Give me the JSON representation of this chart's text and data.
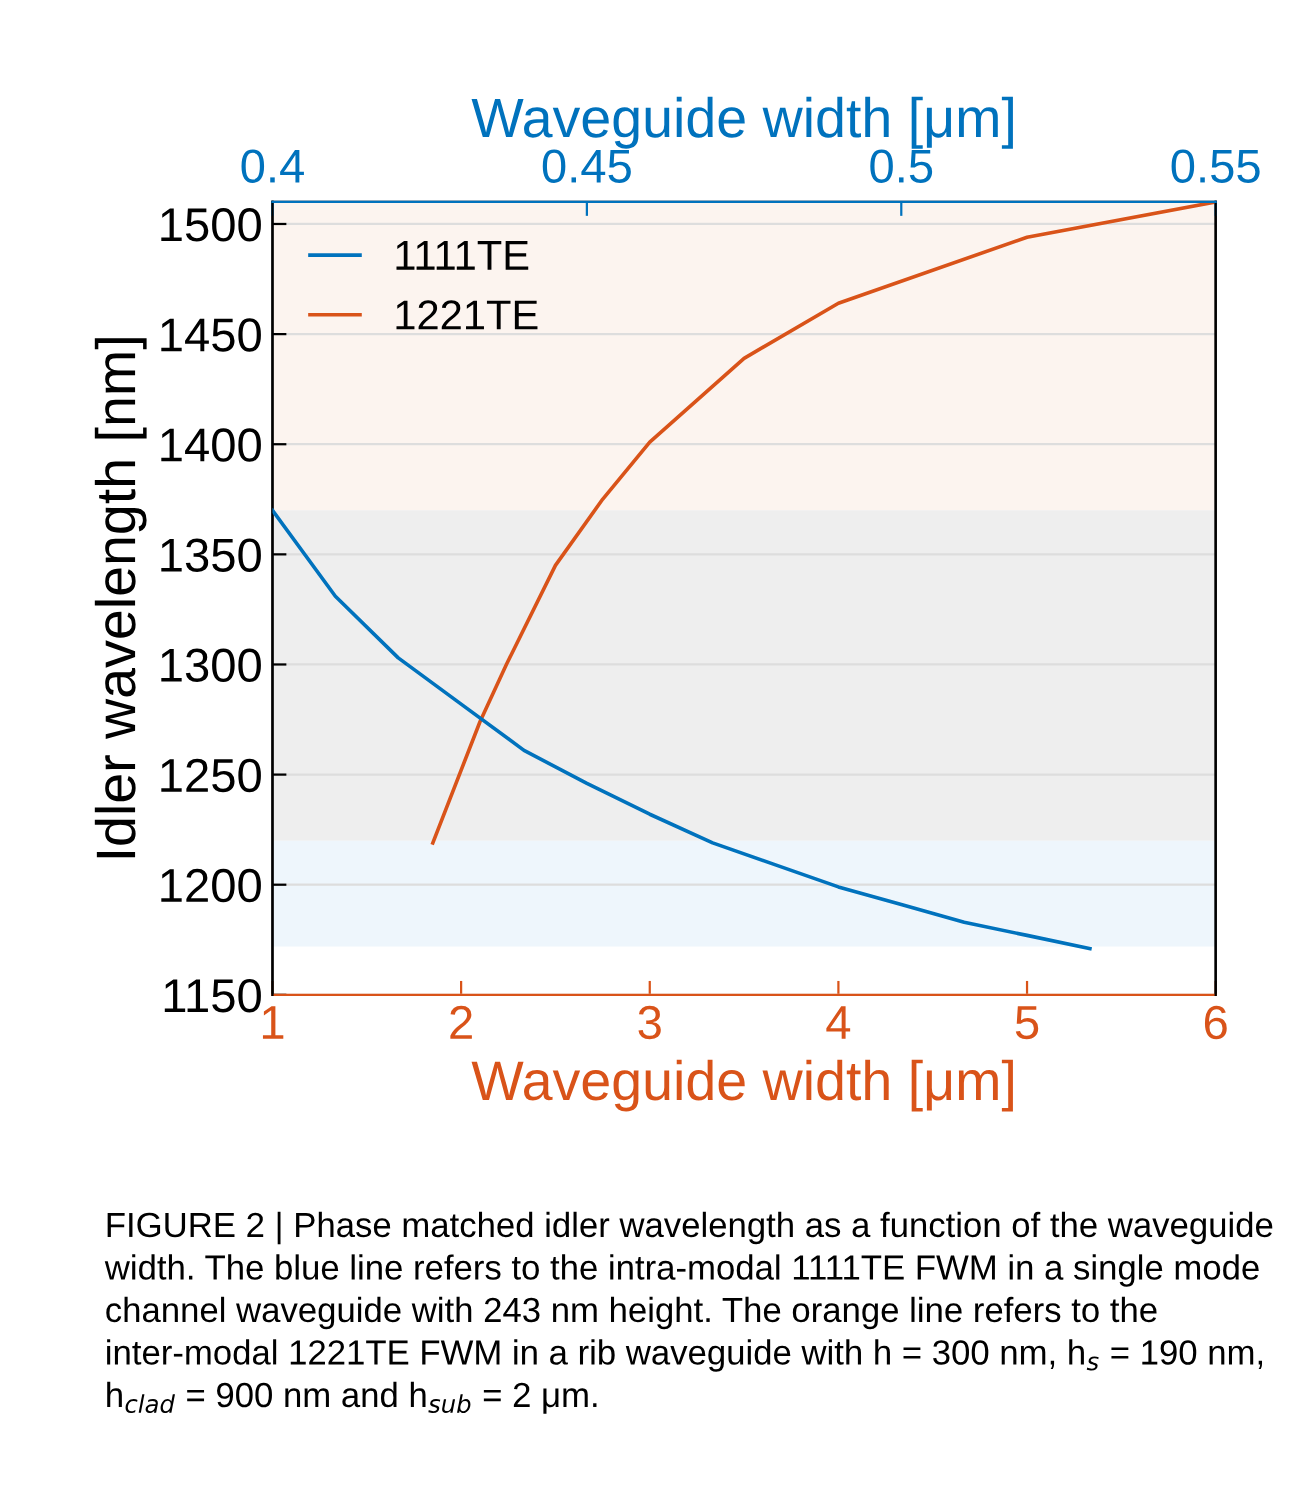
{
  "chart_data": {
    "type": "line",
    "xlabel": "Waveguide width [μm]",
    "x2label": "Waveguide width [μm]",
    "ylabel": "Idler wavelength [nm]",
    "xlim": [
      1,
      6
    ],
    "xticks": [
      1,
      2,
      3,
      4,
      5,
      6
    ],
    "x2lim": [
      0.4,
      0.55
    ],
    "x2ticks": [
      0.4,
      0.45,
      0.5,
      0.55
    ],
    "ylim": [
      1150,
      1510
    ],
    "yticks": [
      1150,
      1200,
      1250,
      1300,
      1350,
      1400,
      1450,
      1500
    ],
    "grid": "y",
    "legend": "top left",
    "series": [
      {
        "name": "1111TE",
        "color": "#0072bd",
        "axis": "x2",
        "x": [
          0.4,
          0.41,
          0.42,
          0.43,
          0.44,
          0.45,
          0.46,
          0.47,
          0.48,
          0.49,
          0.5,
          0.51,
          0.52,
          0.53
        ],
        "values": [
          1370,
          1331,
          1303,
          1282,
          1261,
          1246,
          1232,
          1219,
          1209,
          1199,
          1191,
          1183,
          1177,
          1171
        ]
      },
      {
        "name": "1221TE",
        "color": "#d95319",
        "x": [
          1.85,
          2.1,
          2.24,
          2.5,
          2.75,
          3.0,
          3.5,
          4.0,
          5.0,
          6.0
        ],
        "values": [
          1219,
          1274,
          1300,
          1345,
          1375,
          1401,
          1439,
          1464,
          1494,
          1510
        ]
      }
    ],
    "bands": [
      {
        "axis": "y",
        "from": 1370,
        "to": 1510,
        "color": "#fcf4ef"
      },
      {
        "axis": "y",
        "from": 1220,
        "to": 1370,
        "color": "#eeeeee"
      },
      {
        "axis": "y",
        "from": 1172,
        "to": 1220,
        "color": "#eef6fc"
      }
    ],
    "annotations": [
      "FIGURE 2 | Phase matched idler wavelength as a function of the waveguide width. The blue line refers to the intra-modal 1111TE FWM in a single mode channel waveguide with 243 nm height. The orange line refers to the inter-modal 1221TE FWM in a rib waveguide with h = 300 nm, h$_{s}$ = 190 nm, h$_{clad}$ = 900 nm and h$_{sub}$ = 2 μm."
    ]
  }
}
